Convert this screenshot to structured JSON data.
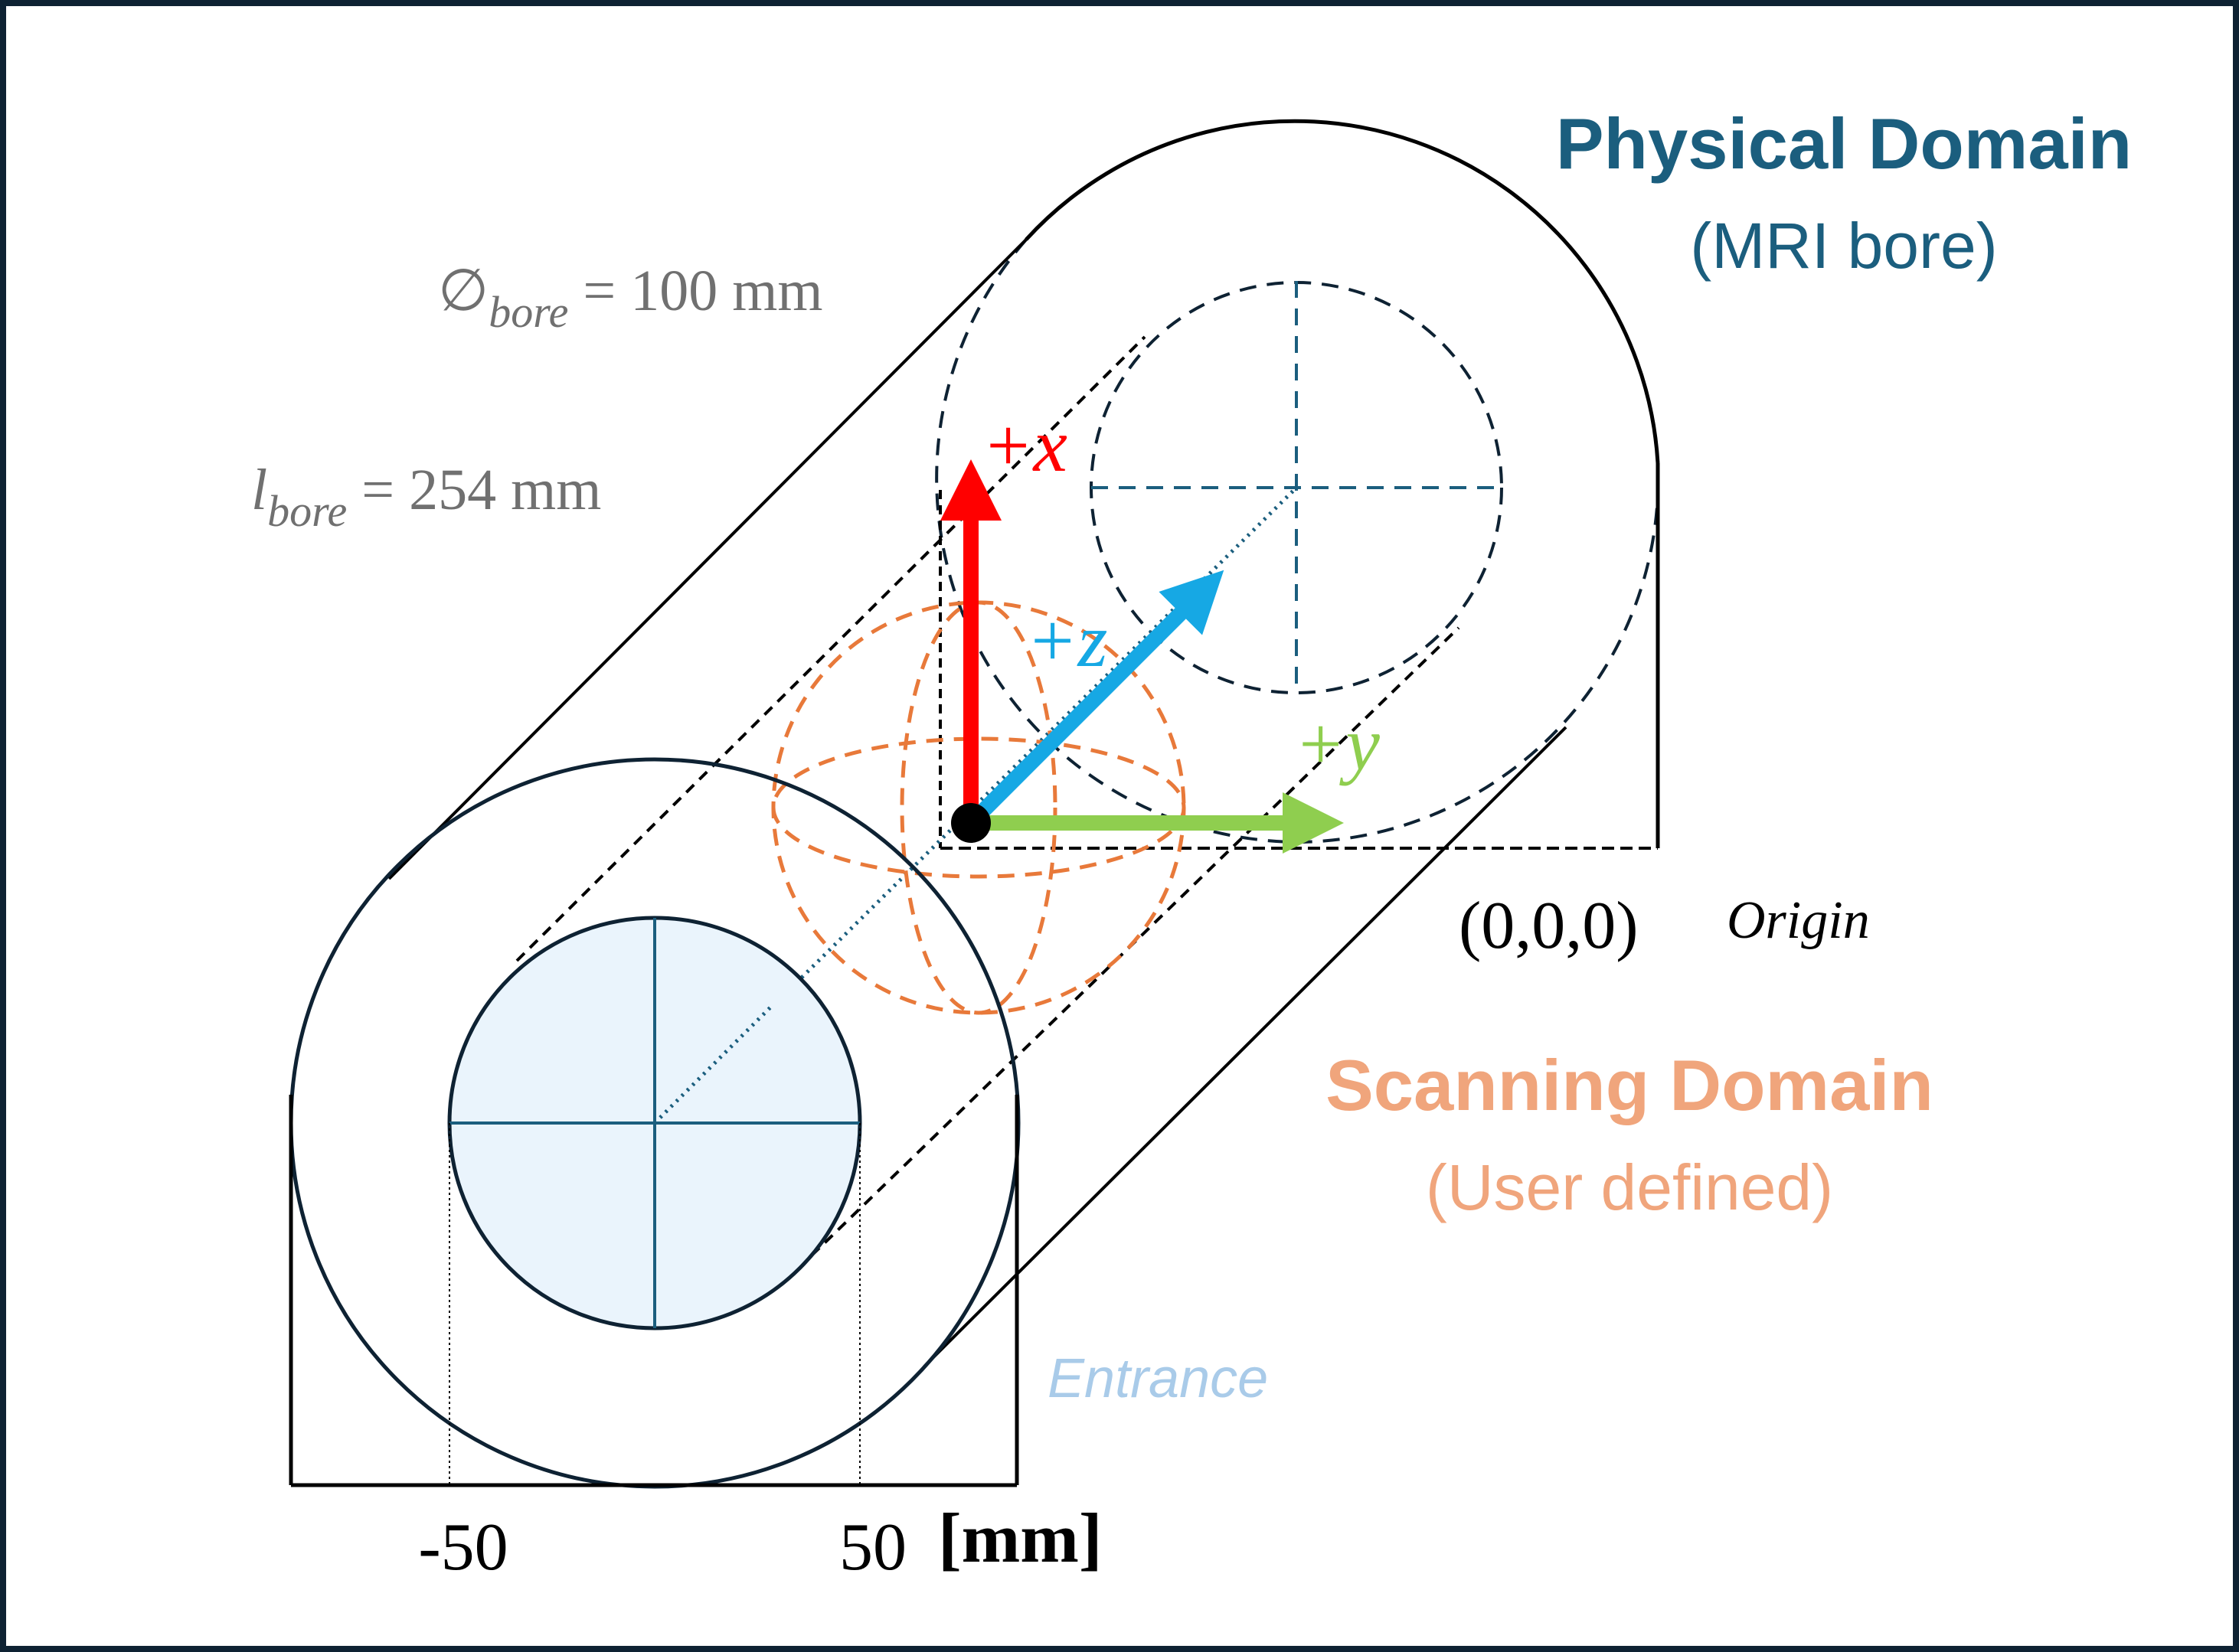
{
  "physical_domain": {
    "title": "Physical Domain",
    "subtitle": "(MRI bore)",
    "color": "#1b5e7e"
  },
  "scanning_domain": {
    "title": "Scanning Domain",
    "subtitle": "(User defined)",
    "color": "#f0a57c"
  },
  "bore_diameter": {
    "symbol": "∅",
    "subscript": "bore",
    "value_text": " = 100 mm"
  },
  "bore_length": {
    "symbol": "l",
    "subscript": "bore",
    "value_text": " = 254 mm"
  },
  "axes": {
    "x_label": "+x",
    "y_label": "+y",
    "z_label": "+z",
    "x_color": "#ff0000",
    "y_color": "#8fce4f",
    "z_color": "#16a8e4"
  },
  "origin": {
    "coords": "(0,0,0)",
    "label": "Origin"
  },
  "entrance_label": "Entrance",
  "entrance_color": "#a9cbe9",
  "ticks": {
    "left": "-50",
    "right": "50",
    "unit": "[mm]"
  },
  "colors": {
    "frame": "#0e2233",
    "scan_sphere": "#e8793a",
    "entrance_fill": "#eaf4fc",
    "crosshair": "#1b5e7e",
    "dim_text": "#707070"
  }
}
